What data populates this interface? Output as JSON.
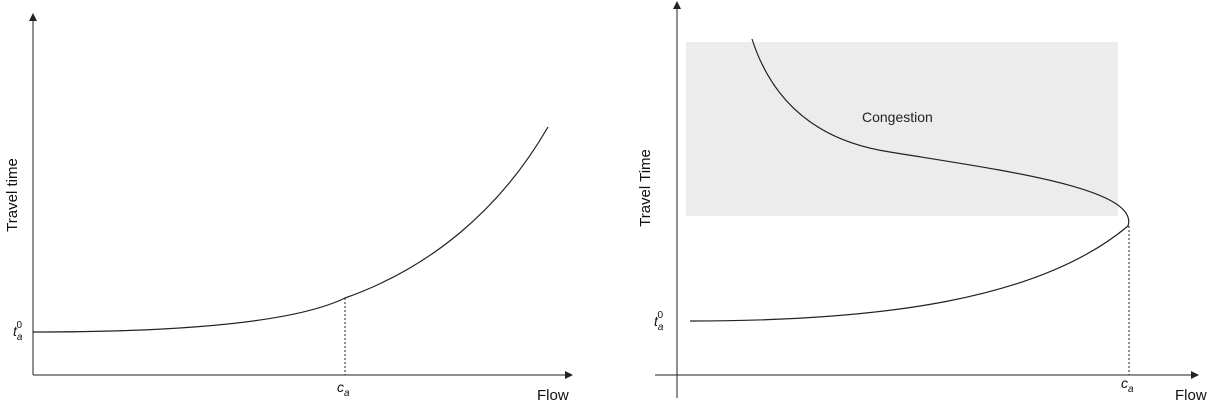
{
  "panels": [
    {
      "y_axis_label": "Travel time",
      "x_axis_label": "Flow",
      "y_tick": {
        "base": "t",
        "sub": "a",
        "sup": "0"
      },
      "x_tick": {
        "base": "c",
        "sub": "a"
      }
    },
    {
      "y_axis_label": "Travel Time",
      "x_axis_label": "Flow",
      "y_tick": {
        "base": "t",
        "sub": "a",
        "sup": "0"
      },
      "x_tick": {
        "base": "c",
        "sub": "a"
      },
      "region_label": "Congestion"
    }
  ],
  "colors": {
    "line": "#222222",
    "axis": "#222222",
    "congestion_fill": "#ececec"
  }
}
